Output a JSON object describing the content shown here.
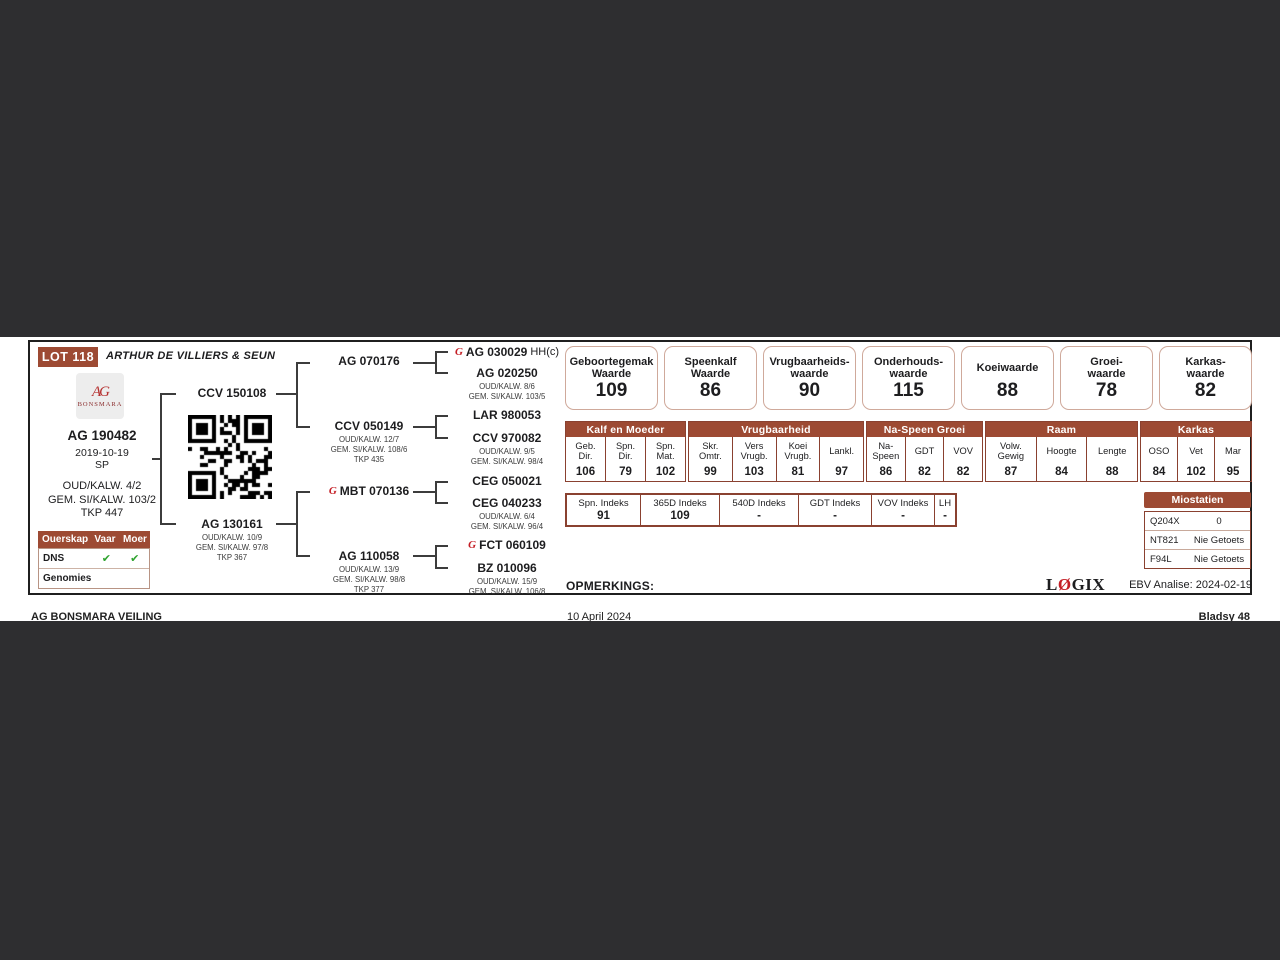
{
  "lot": "LOT 118",
  "owner": "ARTHUR DE VILLIERS & SEUN",
  "logo": {
    "monogram": "AG",
    "breed": "BONSMARA"
  },
  "animal": {
    "id": "AG 190482",
    "date": "2019-10-19",
    "status": "SP",
    "s1": "OUD/KALW. 4/2",
    "s2": "GEM. SI/KALW. 103/2",
    "s3": "TKP 447"
  },
  "ouerskap": {
    "h1": "Ouerskap",
    "h2": "Vaar",
    "h3": "Moer",
    "rows": [
      {
        "l": "DNS",
        "v": "✔",
        "m": "✔"
      },
      {
        "l": "Genomies",
        "v": "",
        "m": ""
      }
    ]
  },
  "icons": {
    "merit": "G"
  },
  "ped": {
    "sire": {
      "id": "CCV 150108"
    },
    "dam": {
      "id": "AG 130161",
      "s1": "OUD/KALW. 10/9",
      "s2": "GEM. SI/KALW. 97/8",
      "s3": "TKP 367"
    },
    "g2": [
      {
        "id": "AG 070176"
      },
      {
        "id": "CCV 050149",
        "s1": "OUD/KALW. 12/7",
        "s2": "GEM. SI/KALW. 108/6",
        "s3": "TKP 435"
      },
      {
        "id": "MBT 070136"
      },
      {
        "id": "AG 110058",
        "s1": "OUD/KALW. 13/9",
        "s2": "GEM. SI/KALW. 98/8",
        "s3": "TKP 377"
      }
    ],
    "g3": [
      {
        "id": "AG 030029",
        "sfx": "HH(c)"
      },
      {
        "id": "AG 020250",
        "s1": "OUD/KALW. 8/6",
        "s2": "GEM. SI/KALW. 103/5"
      },
      {
        "id": "LAR 980053"
      },
      {
        "id": "CCV 970082",
        "s1": "OUD/KALW. 9/5",
        "s2": "GEM. SI/KALW. 98/4"
      },
      {
        "id": "CEG 050021"
      },
      {
        "id": "CEG 040233",
        "s1": "OUD/KALW. 6/4",
        "s2": "GEM. SI/KALW. 96/4"
      },
      {
        "id": "FCT 060109"
      },
      {
        "id": "BZ 010096",
        "s1": "OUD/KALW. 15/9",
        "s2": "GEM. SI/KALW. 106/8"
      }
    ]
  },
  "ebv": [
    {
      "l1": "Geboortegemak",
      "l2": "Waarde",
      "v": "109"
    },
    {
      "l1": "Speenkalf",
      "l2": "Waarde",
      "v": "86"
    },
    {
      "l1": "Vrugbaarheids-",
      "l2": "waarde",
      "v": "90"
    },
    {
      "l1": "Onderhouds-",
      "l2": "waarde",
      "v": "115"
    },
    {
      "l1": "Koeiwaarde",
      "l2": "",
      "v": "88"
    },
    {
      "l1": "Groei-",
      "l2": "waarde",
      "v": "78"
    },
    {
      "l1": "Karkas-",
      "l2": "waarde",
      "v": "82"
    }
  ],
  "traits": [
    {
      "name": "Kalf en Moeder",
      "cols": [
        {
          "l1": "Geb.",
          "l2": "Dir.",
          "v": "106"
        },
        {
          "l1": "Spn.",
          "l2": "Dir.",
          "v": "79"
        },
        {
          "l1": "Spn.",
          "l2": "Mat.",
          "v": "102"
        }
      ]
    },
    {
      "name": "Vrugbaarheid",
      "cols": [
        {
          "l1": "Skr.",
          "l2": "Omtr.",
          "v": "99"
        },
        {
          "l1": "Vers",
          "l2": "Vrugb.",
          "v": "103"
        },
        {
          "l1": "Koei",
          "l2": "Vrugb.",
          "v": "81"
        },
        {
          "l1": "Lankl.",
          "l2": "",
          "v": "97"
        }
      ]
    },
    {
      "name": "Na-Speen Groei",
      "cols": [
        {
          "l1": "Na-",
          "l2": "Speen",
          "v": "86"
        },
        {
          "l1": "GDT",
          "l2": "",
          "v": "82"
        },
        {
          "l1": "VOV",
          "l2": "",
          "v": "82"
        }
      ]
    },
    {
      "name": "Raam",
      "cols": [
        {
          "l1": "Volw.",
          "l2": "Gewig",
          "v": "87"
        },
        {
          "l1": "Hoogte",
          "l2": "",
          "v": "84"
        },
        {
          "l1": "Lengte",
          "l2": "",
          "v": "88"
        }
      ]
    },
    {
      "name": "Karkas",
      "cols": [
        {
          "l1": "OSO",
          "l2": "",
          "v": "84"
        },
        {
          "l1": "Vet",
          "l2": "",
          "v": "102"
        },
        {
          "l1": "Mar",
          "l2": "",
          "v": "95"
        }
      ]
    }
  ],
  "indexes": [
    {
      "label": "Spn. Indeks",
      "value": "91"
    },
    {
      "label": "365D Indeks",
      "value": "109"
    },
    {
      "label": "540D Indeks",
      "value": "-"
    },
    {
      "label": "GDT Indeks",
      "value": "-"
    },
    {
      "label": "VOV Indeks",
      "value": "-"
    },
    {
      "label": "LH",
      "value": "-"
    }
  ],
  "mio": {
    "title": "Miostatien",
    "rows": [
      {
        "c": "Q204X",
        "r": "0"
      },
      {
        "c": "NT821",
        "r": "Nie Getoets"
      },
      {
        "c": "F94L",
        "r": "Nie Getoets"
      }
    ]
  },
  "remarks": "OPMERKINGS:",
  "logix": {
    "l": "L",
    "o": "Ø",
    "gix": "GIX",
    "analysis": "EBV Analise: 2024-02-19"
  },
  "footer": {
    "left": "AG BONSMARA VEILING",
    "center": "10 April 2024",
    "right": "Bladsy 48"
  },
  "colors": {
    "accent_brown": "#9d4a33",
    "border_brown": "#8a4130",
    "ebv_border": "#cfa99b",
    "check_green": "#2da32d",
    "logo_red": "#c41e25",
    "bg_dark": "#2e2e30"
  }
}
